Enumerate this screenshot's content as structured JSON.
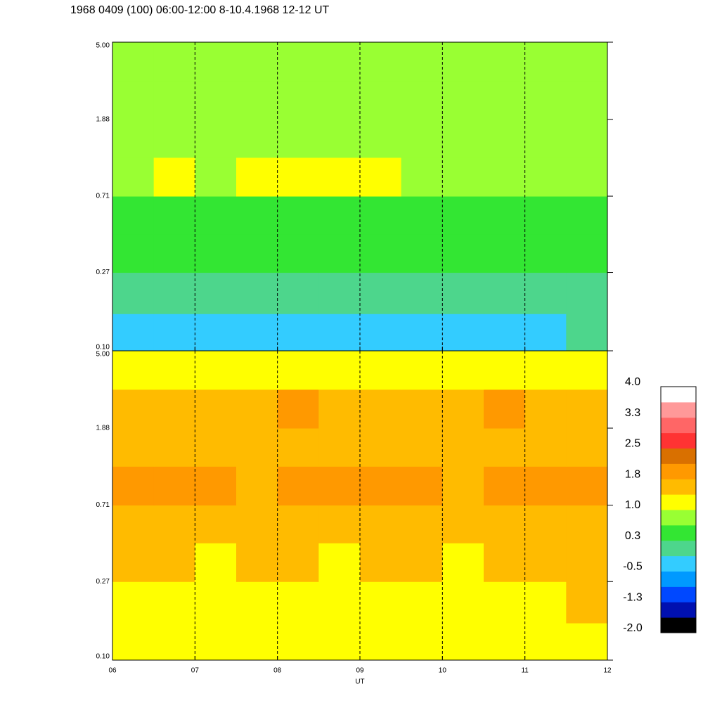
{
  "title": "1968 0409 (100) 06:00-12:00 8-10.4.1968  12-12 UT",
  "chart_data": [
    {
      "type": "heatmap",
      "xlim": [
        6,
        12
      ],
      "ylim": [
        0.1,
        5
      ],
      "yscale": "log",
      "yticks": [
        {
          "value": 0.1,
          "label": "0.10"
        },
        0.27,
        0.71,
        1.88,
        {
          "value": 5,
          "label": "5.00"
        }
      ],
      "x_edges": [
        6,
        6.5,
        7,
        7.5,
        8,
        8.5,
        9,
        9.5,
        10,
        10.5,
        11,
        11.5,
        12
      ],
      "y_edges": [
        0.1,
        0.16,
        0.27,
        0.44,
        0.71,
        1.16,
        1.88,
        3.07,
        5
      ],
      "values": [
        [
          -0.3,
          -0.2,
          -0.3,
          -0.3,
          -0.2,
          -0.3,
          -0.3,
          -0.2,
          -0.3,
          -0.3,
          -0.2,
          -0.1
        ],
        [
          0.0,
          0.1,
          0.0,
          0.1,
          0.0,
          0.1,
          0.0,
          0.1,
          0.0,
          0.1,
          0.0,
          0.2
        ],
        [
          0.4,
          0.5,
          0.4,
          0.4,
          0.5,
          0.4,
          0.5,
          0.4,
          0.4,
          0.5,
          0.4,
          0.5
        ],
        [
          0.5,
          0.6,
          0.5,
          0.6,
          0.5,
          0.5,
          0.6,
          0.5,
          0.6,
          0.5,
          0.5,
          0.6
        ],
        [
          0.9,
          1.0,
          0.9,
          1.1,
          1.1,
          1.1,
          1.0,
          0.9,
          0.9,
          0.8,
          0.9,
          0.9
        ],
        [
          0.7,
          0.8,
          0.8,
          0.7,
          0.8,
          0.7,
          0.8,
          0.7,
          0.8,
          0.8,
          0.7,
          0.8
        ],
        [
          0.7,
          0.8,
          0.7,
          0.7,
          0.7,
          0.7,
          0.7,
          0.7,
          0.8,
          0.9,
          0.7,
          0.7
        ],
        [
          0.8,
          0.9,
          0.8,
          0.8,
          0.9,
          0.8,
          0.8,
          0.9,
          0.8,
          0.9,
          0.8,
          0.8
        ]
      ]
    },
    {
      "type": "heatmap",
      "xlim": [
        6,
        12
      ],
      "ylim": [
        0.1,
        5
      ],
      "yscale": "log",
      "xlabel": "UT",
      "yticks": [
        {
          "value": 0.1,
          "label": "0.10"
        },
        0.27,
        0.71,
        1.88,
        {
          "value": 5,
          "label": "5.00"
        }
      ],
      "xticks": [
        {
          "value": 6,
          "label": "06"
        },
        {
          "value": 7,
          "label": "07"
        },
        {
          "value": 8,
          "label": "08"
        },
        {
          "value": 9,
          "label": "09"
        },
        {
          "value": 10,
          "label": "10"
        },
        {
          "value": 11,
          "label": "11"
        },
        {
          "value": 12,
          "label": "12"
        }
      ],
      "x_edges": [
        6,
        6.5,
        7,
        7.5,
        8,
        8.5,
        9,
        9.5,
        10,
        10.5,
        11,
        11.5,
        12
      ],
      "y_edges": [
        0.1,
        0.16,
        0.27,
        0.44,
        0.71,
        1.16,
        1.88,
        3.07,
        5
      ],
      "values": [
        [
          1.2,
          1.1,
          1.2,
          1.1,
          1.2,
          1.2,
          1.1,
          1.2,
          1.2,
          1.1,
          1.2,
          1.3
        ],
        [
          1.3,
          1.2,
          1.3,
          1.3,
          1.2,
          1.3,
          1.3,
          1.2,
          1.3,
          1.3,
          1.2,
          1.4
        ],
        [
          1.4,
          1.4,
          1.3,
          1.4,
          1.4,
          1.3,
          1.4,
          1.4,
          1.3,
          1.4,
          1.4,
          1.4
        ],
        [
          1.6,
          1.6,
          1.5,
          1.6,
          1.6,
          1.5,
          1.6,
          1.6,
          1.5,
          1.6,
          1.6,
          1.6
        ],
        [
          1.9,
          1.9,
          1.8,
          1.7,
          1.8,
          1.9,
          1.9,
          1.8,
          1.7,
          1.9,
          1.9,
          1.8
        ],
        [
          1.6,
          1.7,
          1.6,
          1.6,
          1.7,
          1.6,
          1.6,
          1.7,
          1.6,
          1.7,
          1.6,
          1.7
        ],
        [
          1.7,
          1.7,
          1.6,
          1.7,
          1.8,
          1.7,
          1.6,
          1.7,
          1.7,
          1.9,
          1.7,
          1.7
        ],
        [
          1.1,
          1.2,
          1.1,
          1.1,
          1.2,
          1.1,
          1.1,
          1.2,
          1.1,
          1.2,
          1.1,
          1.1
        ]
      ]
    }
  ],
  "colorbar": {
    "lim": [
      -2,
      4
    ],
    "colors": [
      "#000000",
      "#0010b0",
      "#0048ff",
      "#0099ff",
      "#33ccff",
      "#4dd68c",
      "#33e633",
      "#99ff33",
      "#ffff00",
      "#ffbb00",
      "#ff9900",
      "#d97000",
      "#ff3333",
      "#ff6666",
      "#ff9999",
      "#ffffff"
    ],
    "ticks": [
      {
        "value": 4,
        "label": "4.0"
      },
      {
        "value": 3.25,
        "label": "3.3"
      },
      {
        "value": 2.5,
        "label": "2.5"
      },
      {
        "value": 1.75,
        "label": "1.8"
      },
      {
        "value": 1,
        "label": "1.0"
      },
      {
        "value": 0.25,
        "label": "0.3"
      },
      {
        "value": -0.5,
        "label": "-0.5"
      },
      {
        "value": -1.25,
        "label": "-1.3"
      },
      {
        "value": -2,
        "label": "-2.0"
      }
    ]
  }
}
